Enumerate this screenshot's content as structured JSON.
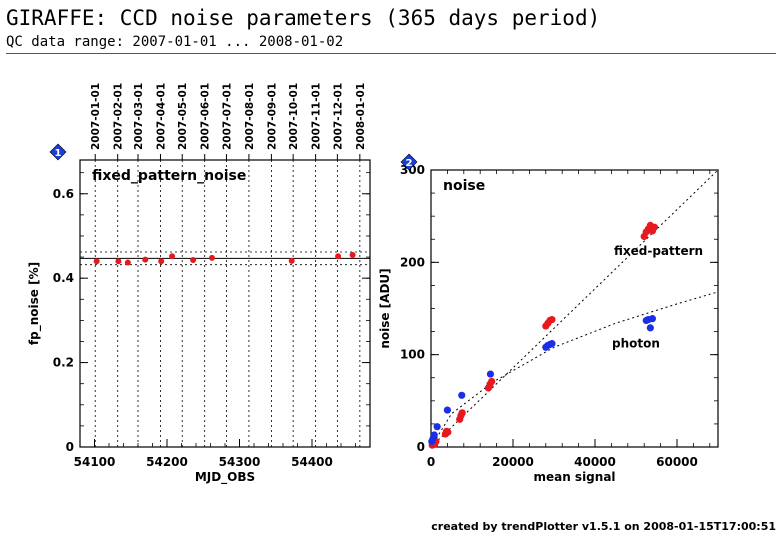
{
  "page": {
    "title": "GIRAFFE: CCD noise parameters (365 days period)",
    "subtitle": "QC data range: 2007-01-01 ... 2008-01-02",
    "footer": "created by trendPlotter v1.5.1 on 2008-01-15T17:00:51"
  },
  "colors": {
    "red": "#e8191e",
    "blue": "#1b2ee8",
    "badge": "#1a3fd8",
    "badge_text": "#ffffff"
  },
  "chart_data": [
    {
      "type": "scatter",
      "badge": "1",
      "panel_label": "fixed_pattern_noise",
      "xlabel": "MJD_OBS",
      "ylabel": "fp_noise [%]",
      "xlim": [
        54080,
        54480
      ],
      "ylim": [
        0,
        0.68
      ],
      "xticks": [
        54100,
        54200,
        54300,
        54400
      ],
      "xtick_labels": [
        "54100",
        "54200",
        "54300",
        "54400"
      ],
      "yticks": [
        0,
        0.2,
        0.4,
        0.6
      ],
      "ytick_labels": [
        "0",
        "0.2",
        "0.4",
        "0.6"
      ],
      "date_ticks": [
        {
          "x": 54101,
          "label": "2007-01-01"
        },
        {
          "x": 54132,
          "label": "2007-02-01"
        },
        {
          "x": 54160,
          "label": "2007-03-01"
        },
        {
          "x": 54191,
          "label": "2007-04-01"
        },
        {
          "x": 54221,
          "label": "2007-05-01"
        },
        {
          "x": 54252,
          "label": "2007-06-01"
        },
        {
          "x": 54282,
          "label": "2007-07-01"
        },
        {
          "x": 54313,
          "label": "2007-08-01"
        },
        {
          "x": 54344,
          "label": "2007-09-01"
        },
        {
          "x": 54374,
          "label": "2007-10-01"
        },
        {
          "x": 54405,
          "label": "2007-11-01"
        },
        {
          "x": 54435,
          "label": "2007-12-01"
        },
        {
          "x": 54466,
          "label": "2008-01-01"
        }
      ],
      "reference_lines": {
        "mean": 0.447,
        "upper": 0.462,
        "lower": 0.432
      },
      "series": [
        {
          "color": "red",
          "x": [
            54103,
            54133,
            54146,
            54170,
            54192,
            54207,
            54236,
            54262,
            54372,
            54436,
            54456
          ],
          "y": [
            0.44,
            0.44,
            0.437,
            0.444,
            0.44,
            0.452,
            0.443,
            0.448,
            0.441,
            0.452,
            0.455
          ]
        }
      ]
    },
    {
      "type": "scatter",
      "badge": "2",
      "panel_label": "noise",
      "xlabel": "mean signal",
      "ylabel": "noise [ADU]",
      "xlim": [
        0,
        70000
      ],
      "ylim": [
        0,
        300
      ],
      "xticks": [
        0,
        20000,
        40000,
        60000
      ],
      "xtick_labels": [
        "0",
        "20000",
        "40000",
        "60000"
      ],
      "yticks": [
        0,
        100,
        200,
        300
      ],
      "ytick_labels": [
        "0",
        "100",
        "200",
        "300"
      ],
      "annotations": [
        {
          "text": "fixed-pattern",
          "x": 55500,
          "y": 208
        },
        {
          "text": "photon",
          "x": 50000,
          "y": 108
        }
      ],
      "fit_lines": [
        {
          "name": "fixed-pattern",
          "x": [
            0,
            70000
          ],
          "y": [
            0,
            300
          ]
        },
        {
          "name": "photon",
          "x": [
            0,
            5000,
            15000,
            30000,
            45000,
            60000,
            70000
          ],
          "y": [
            0,
            36,
            70,
            108,
            134,
            155,
            168
          ]
        }
      ],
      "series": [
        {
          "color": "red",
          "x": [
            300,
            600,
            900,
            1200,
            3500,
            3800,
            4100,
            7000,
            7300,
            7600,
            14000,
            14400,
            14800,
            28000,
            28500,
            29000,
            29500,
            52000,
            52500,
            53000,
            53500,
            54000,
            54500
          ],
          "y": [
            2,
            4,
            3,
            6,
            14,
            17,
            16,
            30,
            34,
            37,
            64,
            68,
            71,
            131,
            134,
            137,
            138,
            228,
            233,
            236,
            240,
            234,
            238
          ]
        },
        {
          "color": "blue",
          "x": [
            200,
            500,
            800,
            1500,
            4000,
            7500,
            14500,
            28000,
            28500,
            29000,
            29500,
            52500,
            53000,
            53500,
            54000
          ],
          "y": [
            6,
            9,
            13,
            22,
            40,
            56,
            79,
            108,
            110,
            111,
            112,
            137,
            138,
            129,
            139
          ]
        }
      ]
    }
  ]
}
